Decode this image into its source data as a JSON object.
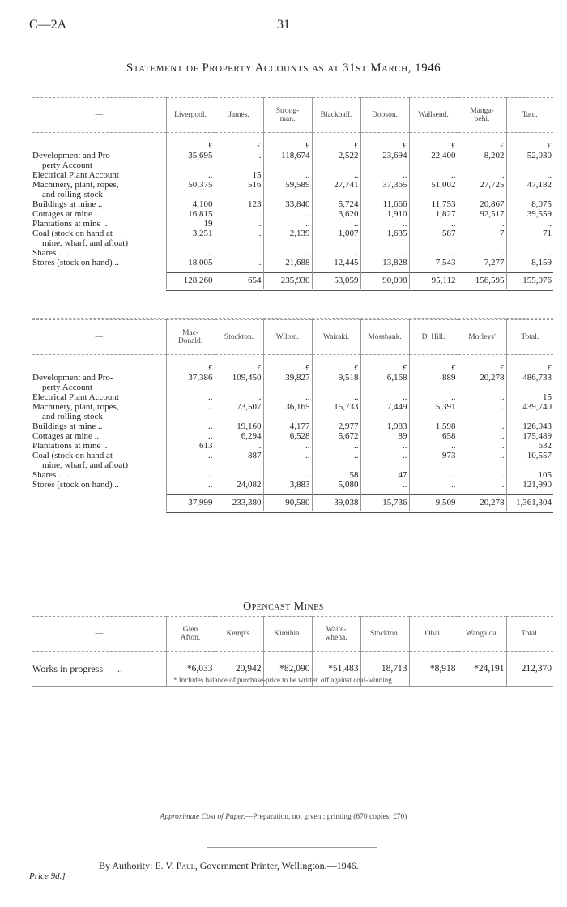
{
  "header": {
    "section": "C—2A",
    "page_number": "31"
  },
  "property": {
    "title": "Statement of Property Accounts as at 31st March, 1946",
    "row_labels": [
      [
        "Development and Pro-",
        "perty Account"
      ],
      [
        "Electrical Plant Account"
      ],
      [
        "Machinery, plant, ropes,",
        "and rolling-stock"
      ],
      [
        "Buildings at mine      .."
      ],
      [
        "Cottages at mine       .."
      ],
      [
        "Plantations at mine  .."
      ],
      [
        "Coal (stock on hand at",
        "mine, wharf, and afloat)"
      ],
      [
        "Shares         ..        .."
      ],
      [
        "Stores (stock on hand) .."
      ]
    ],
    "tables": [
      {
        "dash": "—",
        "columns": [
          "Liverpool.",
          "James.",
          "Strong-\nman.",
          "Blackball.",
          "Dobson.",
          "Wallsend.",
          "Manga-\npehi.",
          "Tatu."
        ],
        "currency": [
          "£",
          "£",
          "£",
          "£",
          "£",
          "£",
          "£",
          "£"
        ],
        "rows": [
          [
            "35,695",
            "..",
            "118,674",
            "2,522",
            "23,694",
            "22,400",
            "8,202",
            "52,030"
          ],
          [
            "..",
            "15",
            "..",
            "..",
            "..",
            "..",
            "..",
            ".."
          ],
          [
            "50,375",
            "516",
            "59,589",
            "27,741",
            "37,365",
            "51,002",
            "27,725",
            "47,182"
          ],
          [
            "4,100",
            "123",
            "33,840",
            "5,724",
            "11,666",
            "11,753",
            "20,867",
            "8,075"
          ],
          [
            "16,815",
            "..",
            "..",
            "3,620",
            "1,910",
            "1,827",
            "92,517",
            "39,559"
          ],
          [
            "19",
            "..",
            "..",
            "..",
            "..",
            "..",
            "..",
            ".."
          ],
          [
            "3,251",
            "..",
            "2,139",
            "1,007",
            "1,635",
            "587",
            "7",
            "71"
          ],
          [
            "..",
            "..",
            "..",
            "..",
            "..",
            "..",
            "..",
            ".."
          ],
          [
            "18,005",
            "..",
            "21,688",
            "12,445",
            "13,828",
            "7,543",
            "7,277",
            "8,159"
          ]
        ],
        "totals": [
          "128,260",
          "654",
          "235,930",
          "53,059",
          "90,098",
          "95,112",
          "156,595",
          "155,076"
        ]
      },
      {
        "dash": "—",
        "columns": [
          "Mac-\nDonald.",
          "Stockton.",
          "Wilton.",
          "Wairaki.",
          "Mossbank.",
          "D. Hill.",
          "Morleys'",
          "Total."
        ],
        "currency": [
          "£",
          "£",
          "£",
          "£",
          "£",
          "£",
          "£",
          "£"
        ],
        "rows": [
          [
            "37,386",
            "109,450",
            "39,827",
            "9,518",
            "6,168",
            "889",
            "20,278",
            "486,733"
          ],
          [
            "..",
            "..",
            "..",
            "..",
            "..",
            "..",
            "..",
            "15"
          ],
          [
            "..",
            "73,507",
            "36,165",
            "15,733",
            "7,449",
            "5,391",
            "..",
            "439,740"
          ],
          [
            "..",
            "19,160",
            "4,177",
            "2,977",
            "1,983",
            "1,598",
            "..",
            "126,043"
          ],
          [
            "..",
            "6,294",
            "6,528",
            "5,672",
            "89",
            "658",
            "..",
            "175,489"
          ],
          [
            "613",
            "..",
            "..",
            "..",
            "..",
            "..",
            "..",
            "632"
          ],
          [
            "..",
            "887",
            "..",
            "..",
            "..",
            "973",
            "..",
            "10,557"
          ],
          [
            "..",
            "..",
            "..",
            "58",
            "47",
            "..",
            "..",
            "105"
          ],
          [
            "..",
            "24,082",
            "3,883",
            "5,080",
            "..",
            "..",
            "..",
            "121,990"
          ]
        ],
        "totals": [
          "37,999",
          "233,380",
          "90,580",
          "39,038",
          "15,736",
          "9,509",
          "20,278",
          "1,361,304"
        ]
      }
    ]
  },
  "opencast": {
    "title": "Opencast Mines",
    "dash": "—",
    "columns": [
      "Glen\nAfton.",
      "Kemp's.",
      "Kimihia.",
      "Waite-\nwhena.",
      "Stockton.",
      "Ohai.",
      "Wangaloa.",
      "Total."
    ],
    "row_label": "Works in progress      ..",
    "values": [
      "*6,033",
      "20,942",
      "*82,090",
      "*51,483",
      "18,713",
      "*8,918",
      "*24,191",
      "212,370"
    ],
    "footnote": "* Includes balance of purchase-price to be written off against coal-winning."
  },
  "footer": {
    "cost_label": "Approximate Cost of Paper.",
    "cost_text": "—Preparation, not given ; printing (670 copies, £70)",
    "authority_prefix": "By Authority:  E. V. ",
    "printer_name": "Paul",
    "authority_suffix": ", Government Printer, Wellington.—1946.",
    "price": "Price 9d.]"
  }
}
